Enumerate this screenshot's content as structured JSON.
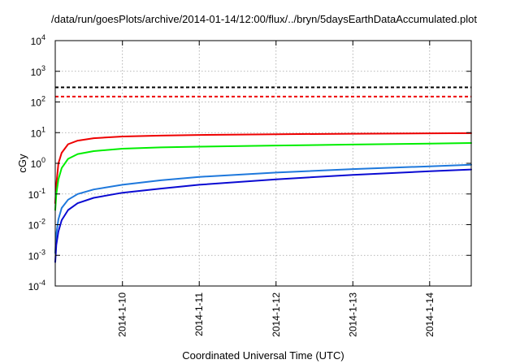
{
  "chart_data": {
    "type": "line",
    "title": "/data/run/goesPlots/archive/2014-01-14/12:00/flux/../bryn/5daysEarthDataAccumulated.plot",
    "xlabel": "Coordinated Universal Time (UTC)",
    "ylabel": "cGy",
    "y_scale": "log",
    "xlim": [
      "2014-01-09T03:00",
      "2014-01-14T13:00"
    ],
    "ylim": [
      0.0001,
      10000
    ],
    "grid": true,
    "x_ticks": [
      "2014-1-10",
      "2014-1-11",
      "2014-1-12",
      "2014-1-13",
      "2014-1-14"
    ],
    "y_ticks": [
      {
        "base": "10",
        "exp": "-4"
      },
      {
        "base": "10",
        "exp": "-3"
      },
      {
        "base": "10",
        "exp": "-2"
      },
      {
        "base": "10",
        "exp": "-1"
      },
      {
        "base": "10",
        "exp": "0"
      },
      {
        "base": "10",
        "exp": "1"
      },
      {
        "base": "10",
        "exp": "2"
      },
      {
        "base": "10",
        "exp": "3"
      },
      {
        "base": "10",
        "exp": "4"
      }
    ],
    "series": [
      {
        "color": "#000000",
        "style": "dashed",
        "x": [
          "2014-01-09T03:00",
          "2014-01-14T13:00"
        ],
        "y": [
          300,
          300
        ]
      },
      {
        "color": "#ee0000",
        "style": "dashed",
        "x": [
          "2014-01-09T03:00",
          "2014-01-14T13:00"
        ],
        "y": [
          150,
          150
        ]
      },
      {
        "color": "#ee0000",
        "style": "solid",
        "x": [
          "2014-01-09T03:00",
          "2014-01-09T03:20",
          "2014-01-09T04:00",
          "2014-01-09T05:00",
          "2014-01-09T07:00",
          "2014-01-09T10:00",
          "2014-01-09T15:00",
          "2014-01-10T00:00",
          "2014-01-10T12:00",
          "2014-01-11T00:00",
          "2014-01-12T00:00",
          "2014-01-13T00:00",
          "2014-01-14T00:00",
          "2014-01-14T13:00"
        ],
        "y": [
          0.05,
          0.2,
          1.0,
          2.2,
          4.2,
          5.5,
          6.6,
          7.5,
          8.0,
          8.4,
          8.9,
          9.2,
          9.5,
          9.6
        ]
      },
      {
        "color": "#00ee00",
        "style": "solid",
        "x": [
          "2014-01-09T03:00",
          "2014-01-09T03:20",
          "2014-01-09T04:00",
          "2014-01-09T05:00",
          "2014-01-09T07:00",
          "2014-01-09T10:00",
          "2014-01-09T15:00",
          "2014-01-10T00:00",
          "2014-01-10T12:00",
          "2014-01-11T00:00",
          "2014-01-12T00:00",
          "2014-01-13T00:00",
          "2014-01-14T00:00",
          "2014-01-14T13:00"
        ],
        "y": [
          0.03,
          0.1,
          0.3,
          0.7,
          1.4,
          2.0,
          2.5,
          3.0,
          3.3,
          3.5,
          3.8,
          4.1,
          4.4,
          4.6
        ]
      },
      {
        "color": "#1e78dc",
        "style": "solid",
        "x": [
          "2014-01-09T03:00",
          "2014-01-09T03:20",
          "2014-01-09T04:00",
          "2014-01-09T05:00",
          "2014-01-09T07:00",
          "2014-01-09T10:00",
          "2014-01-09T15:00",
          "2014-01-10T00:00",
          "2014-01-10T12:00",
          "2014-01-11T00:00",
          "2014-01-12T00:00",
          "2014-01-13T00:00",
          "2014-01-14T00:00",
          "2014-01-14T13:00"
        ],
        "y": [
          0.0012,
          0.005,
          0.015,
          0.035,
          0.065,
          0.1,
          0.14,
          0.2,
          0.28,
          0.36,
          0.5,
          0.65,
          0.8,
          0.9
        ]
      },
      {
        "color": "#0a0ad2",
        "style": "solid",
        "x": [
          "2014-01-09T03:00",
          "2014-01-09T03:20",
          "2014-01-09T04:00",
          "2014-01-09T05:00",
          "2014-01-09T07:00",
          "2014-01-09T10:00",
          "2014-01-09T15:00",
          "2014-01-10T00:00",
          "2014-01-10T12:00",
          "2014-01-11T00:00",
          "2014-01-12T00:00",
          "2014-01-13T00:00",
          "2014-01-14T00:00",
          "2014-01-14T13:00"
        ],
        "y": [
          0.0006,
          0.0022,
          0.006,
          0.014,
          0.03,
          0.05,
          0.075,
          0.11,
          0.15,
          0.2,
          0.3,
          0.42,
          0.55,
          0.63
        ]
      }
    ]
  }
}
